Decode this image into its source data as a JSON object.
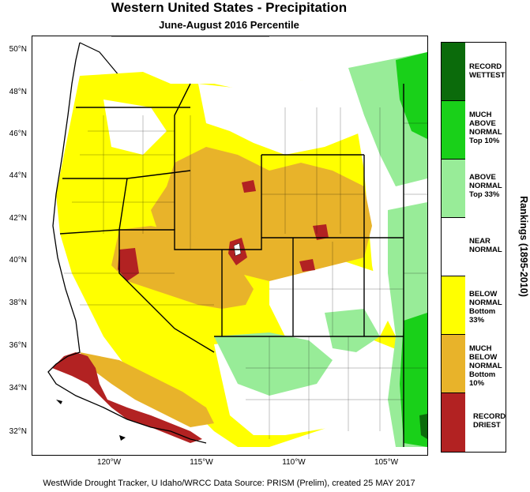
{
  "title": "Western United States - Precipitation",
  "subtitle": "June-August 2016 Percentile",
  "latitude_labels": [
    "50°N",
    "48°N",
    "46°N",
    "44°N",
    "42°N",
    "40°N",
    "38°N",
    "36°N",
    "34°N",
    "32°N"
  ],
  "longitude_labels": [
    "120°W",
    "115°W",
    "110°W",
    "105°W"
  ],
  "legend": {
    "axis_label": "Rankings (1895-2010)",
    "items": [
      {
        "label": "RECORD\nWETTEST",
        "color": "#0b6b0b"
      },
      {
        "label": "MUCH\nABOVE\nNORMAL\nTop 10%",
        "color": "#19d019"
      },
      {
        "label": "ABOVE\nNORMAL\nTop 33%",
        "color": "#98ec98"
      },
      {
        "label": "NEAR\nNORMAL",
        "color": "#ffffff"
      },
      {
        "label": "BELOW\nNORMAL\nBottom 33%",
        "color": "#ffff00"
      },
      {
        "label": "MUCH\nBELOW\nNORMAL\nBottom 10%",
        "color": "#e8b32a"
      },
      {
        "label": "RECORD\nDRIEST",
        "color": "#b22222"
      }
    ]
  },
  "credit": "WestWide Drought Tracker, U Idaho/WRCC Data Source: PRISM (Prelim), created 25 MAY 2017"
}
